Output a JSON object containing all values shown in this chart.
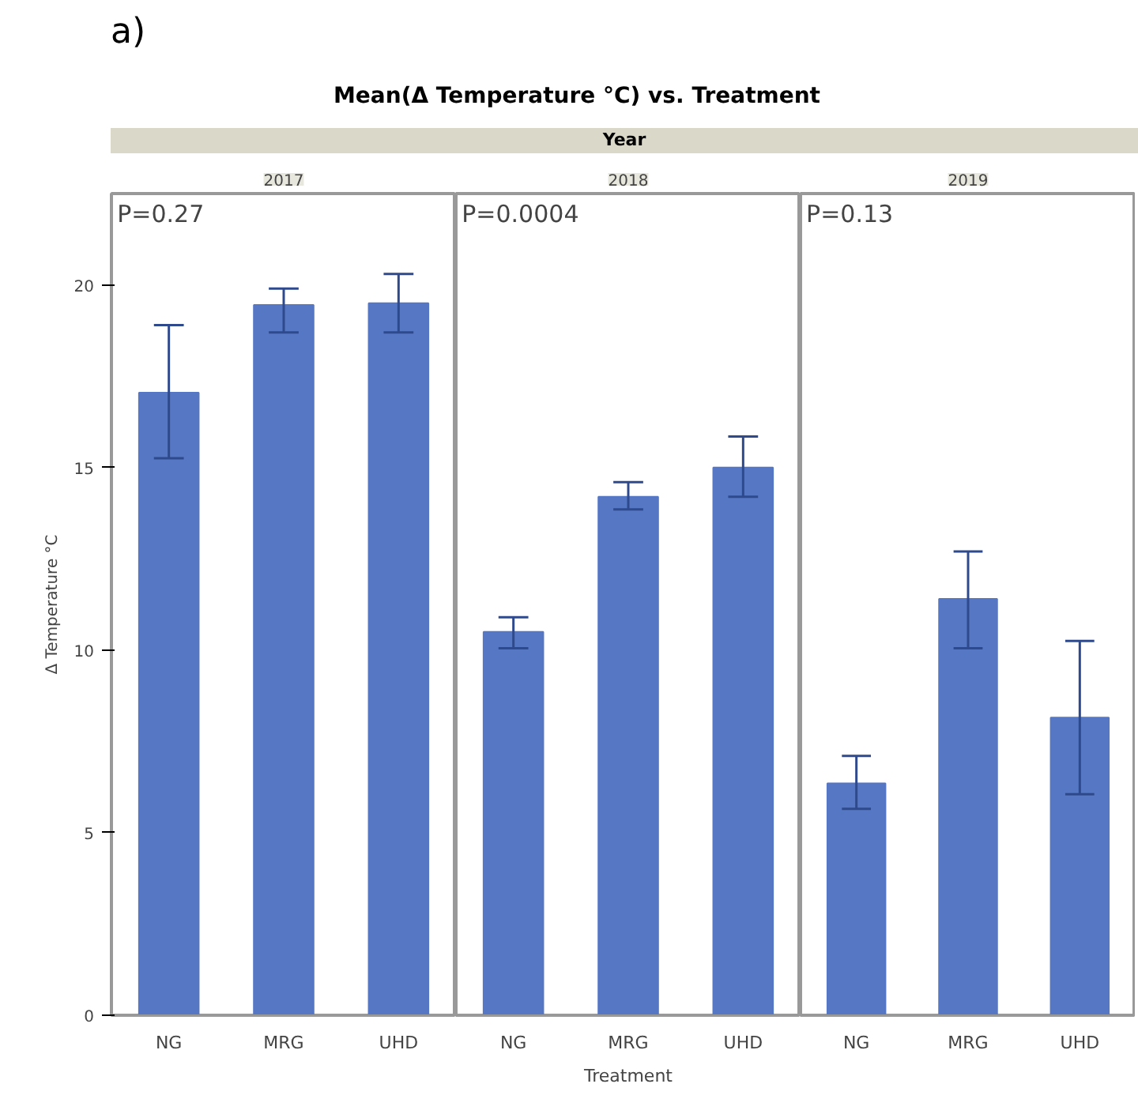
{
  "chart_data": [
    {
      "type": "bar",
      "title": "2017",
      "ylabel": "Δ Temperature °C",
      "annotations": [
        "a)",
        "Mean(Δ Temperature °C) vs. Treatment",
        "Year",
        "P=0.27"
      ],
      "categories": [
        "NG",
        "MRG",
        "UHD"
      ],
      "values": [
        17.05,
        19.45,
        19.5
      ],
      "errors": [
        [
          15.25,
          18.9
        ],
        [
          18.7,
          19.9
        ],
        [
          18.7,
          20.3
        ]
      ],
      "color": "#5677c4",
      "ylim": [
        0,
        22.5
      ],
      "yticks": [
        0,
        5,
        10,
        15,
        20
      ]
    },
    {
      "type": "bar",
      "title": "2018",
      "xlabel": "Treatment",
      "annotations": [
        "P=0.0004"
      ],
      "categories": [
        "NG",
        "MRG",
        "UHD"
      ],
      "values": [
        10.5,
        14.2,
        15.0
      ],
      "errors": [
        [
          10.05,
          10.9
        ],
        [
          13.85,
          14.6
        ],
        [
          14.2,
          15.85
        ]
      ],
      "color": "#5677c4",
      "ylim": [
        0,
        22.5
      ],
      "yticks": [
        0,
        5,
        10,
        15,
        20
      ],
      "tick_labels": "x"
    },
    {
      "type": "bar",
      "title": "2019",
      "annotations": [
        "P=0.13"
      ],
      "categories": [
        "NG",
        "MRG",
        "UHD"
      ],
      "values": [
        6.35,
        11.4,
        8.15
      ],
      "errors": [
        [
          5.65,
          7.1
        ],
        [
          10.05,
          12.7
        ],
        [
          6.05,
          10.25
        ]
      ],
      "color": "#5677c4",
      "ylim": [
        0,
        22.5
      ],
      "yticks": [
        0,
        5,
        10,
        15,
        20
      ],
      "tick_labels": "x"
    }
  ]
}
